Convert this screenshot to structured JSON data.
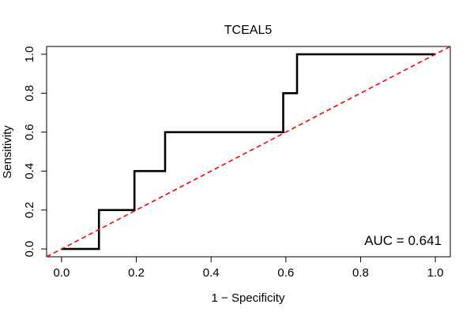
{
  "chart_data": {
    "type": "line",
    "title": "TCEAL5",
    "xlabel": "1 − Specificity",
    "ylabel": "Sensitivity",
    "xlim": [
      -0.04,
      1.04
    ],
    "ylim": [
      -0.04,
      1.04
    ],
    "xticks": [
      0.0,
      0.2,
      0.4,
      0.6,
      0.8,
      1.0
    ],
    "xtick_labels": [
      "0.0",
      "0.2",
      "0.4",
      "0.6",
      "0.8",
      "1.0"
    ],
    "yticks": [
      0.0,
      0.2,
      0.4,
      0.6,
      0.8,
      1.0
    ],
    "ytick_labels": [
      "0.0",
      "0.2",
      "0.4",
      "0.6",
      "0.8",
      "1.0"
    ],
    "grid": false,
    "series": [
      {
        "name": "ROC curve",
        "style": "solid",
        "color": "#000000",
        "x": [
          0.0,
          0.1,
          0.1,
          0.195,
          0.195,
          0.277,
          0.277,
          0.593,
          0.593,
          0.63,
          0.63,
          1.0
        ],
        "y": [
          0.0,
          0.0,
          0.2,
          0.2,
          0.4,
          0.4,
          0.6,
          0.6,
          0.8,
          0.8,
          1.0,
          1.0
        ]
      },
      {
        "name": "Reference line",
        "style": "dashed",
        "color": "#ff0000",
        "x": [
          -0.04,
          1.04
        ],
        "y": [
          -0.04,
          1.04
        ]
      }
    ],
    "annotations": [
      {
        "text": "AUC = 0.641",
        "position": "bottom-right"
      }
    ]
  }
}
